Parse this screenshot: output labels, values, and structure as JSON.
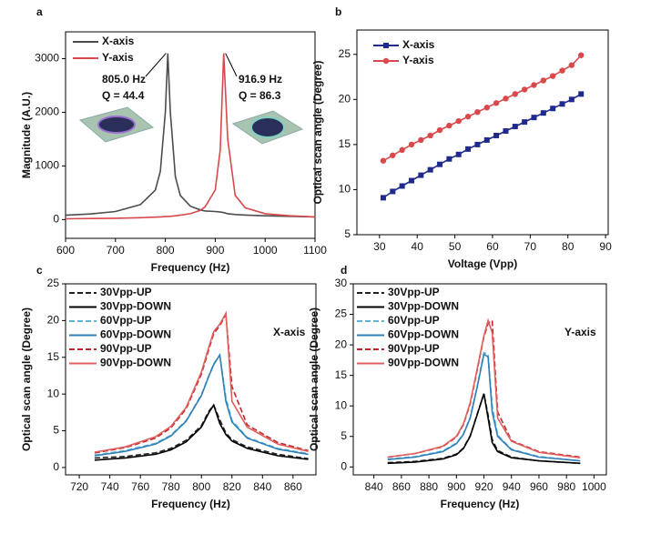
{
  "chart_data": [
    {
      "type": "line",
      "label": "a",
      "x_label": "Frequency (Hz)",
      "y_label": "Magnitude (A.U.)",
      "x": [
        600,
        650,
        700,
        750,
        780,
        790,
        800,
        805,
        810,
        820,
        830,
        850,
        870,
        880,
        900,
        910,
        916.9,
        925,
        940,
        960,
        1000,
        1050,
        1100
      ],
      "series": [
        {
          "name": "X-axis",
          "color": "#4d4d4d",
          "dash": false,
          "values": [
            80,
            105,
            150,
            280,
            550,
            900,
            2000,
            3100,
            2000,
            800,
            450,
            250,
            180,
            160,
            150,
            140,
            130,
            110,
            95,
            85,
            70,
            60,
            50
          ]
        },
        {
          "name": "Y-axis",
          "color": "#d9484b",
          "dash": false,
          "values": [
            15,
            20,
            25,
            35,
            45,
            50,
            55,
            58,
            60,
            70,
            80,
            110,
            170,
            240,
            550,
            1300,
            3100,
            1500,
            450,
            220,
            110,
            70,
            50
          ]
        }
      ],
      "annotations": [
        "805.0 Hz",
        "Q = 44.4",
        "916.9 Hz",
        "Q = 86.3"
      ],
      "annotation_color": "#000000",
      "xlim": [
        600,
        1100
      ],
      "xticks": [
        600,
        700,
        800,
        900,
        1000,
        1100
      ],
      "ylim": [
        -350,
        3500
      ],
      "yticks": [
        0,
        1000,
        2000,
        3000
      ],
      "legend": "upper left"
    },
    {
      "type": "line",
      "label": "b",
      "x_label": "Voltage (Vpp)",
      "y_label": "Optical scan angle (Degree)",
      "x": [
        31,
        33.5,
        36,
        38.5,
        41,
        43.5,
        46,
        48.5,
        51,
        53.5,
        56,
        58.5,
        61,
        63.5,
        66,
        68.5,
        71,
        73.5,
        76,
        78.5,
        81,
        83.5
      ],
      "series": [
        {
          "name": "X-axis",
          "color": "#1f2a8c",
          "dash": false,
          "marker": "square",
          "values": [
            9.1,
            9.8,
            10.4,
            11.0,
            11.6,
            12.2,
            12.8,
            13.4,
            13.9,
            14.5,
            15.0,
            15.5,
            16.0,
            16.5,
            17.0,
            17.5,
            18.0,
            18.5,
            19.0,
            19.5,
            20.0,
            20.6
          ]
        },
        {
          "name": "Y-axis",
          "color": "#d9484b",
          "dash": false,
          "marker": "circle",
          "values": [
            13.2,
            13.8,
            14.4,
            15.0,
            15.5,
            16.0,
            16.6,
            17.1,
            17.6,
            18.1,
            18.6,
            19.1,
            19.6,
            20.1,
            20.6,
            21.1,
            21.6,
            22.1,
            22.6,
            23.2,
            23.8,
            24.9
          ]
        }
      ],
      "xlim": [
        24,
        90.7
      ],
      "xticks": [
        30,
        40,
        50,
        60,
        70,
        80,
        90
      ],
      "ylim": [
        5,
        27.7
      ],
      "yticks": [
        5,
        10,
        15,
        20,
        25
      ],
      "legend": "upper left"
    },
    {
      "type": "line",
      "label": "c",
      "x_label": "Frequency (Hz)",
      "y_label": "Optical scan angle (Degree)",
      "x": [
        730,
        750,
        770,
        780,
        790,
        800,
        805,
        808,
        812,
        816,
        820,
        830,
        850,
        870
      ],
      "series": [
        {
          "name": "30Vpp-UP",
          "color": "#222222",
          "dash": true,
          "values": [
            1.3,
            1.5,
            2.0,
            2.6,
            3.7,
            5.7,
            7.7,
            8.5,
            6.5,
            4.7,
            3.8,
            2.8,
            1.8,
            1.2
          ]
        },
        {
          "name": "30Vpp-DOWN",
          "color": "#000000",
          "dash": false,
          "values": [
            1.0,
            1.3,
            1.8,
            2.4,
            3.5,
            5.5,
            7.5,
            8.5,
            6.0,
            4.5,
            3.6,
            2.6,
            1.6,
            1.1
          ]
        },
        {
          "name": "60Vpp-UP",
          "color": "#5fb3d9",
          "dash": true,
          "values": [
            1.7,
            2.3,
            3.3,
            4.4,
            6.4,
            9.9,
            12.6,
            14.1,
            15.3,
            9.5,
            6.4,
            4.1,
            2.6,
            1.9
          ]
        },
        {
          "name": "60Vpp-DOWN",
          "color": "#2f7fb8",
          "dash": false,
          "values": [
            1.6,
            2.2,
            3.2,
            4.3,
            6.3,
            9.8,
            12.5,
            14.0,
            15.3,
            9.0,
            6.2,
            4.0,
            2.5,
            1.8
          ]
        },
        {
          "name": "90Vpp-UP",
          "color": "#c0262b",
          "dash": true,
          "values": [
            2.0,
            2.7,
            4.0,
            5.4,
            8.0,
            12.7,
            16.2,
            18.2,
            19.3,
            20.8,
            11.0,
            5.8,
            3.4,
            2.3
          ]
        },
        {
          "name": "90Vpp-DOWN",
          "color": "#e0605f",
          "dash": false,
          "values": [
            2.1,
            2.8,
            4.2,
            5.6,
            8.2,
            13.0,
            16.5,
            18.5,
            19.5,
            21.0,
            9.0,
            5.5,
            3.2,
            2.2
          ]
        }
      ],
      "annotations": [
        "X-axis"
      ],
      "annotation_color": "#8a7a2a",
      "xlim": [
        711,
        875
      ],
      "xticks": [
        720,
        740,
        760,
        780,
        800,
        820,
        840,
        860
      ],
      "ylim": [
        -1,
        25
      ],
      "yticks": [
        0,
        5,
        10,
        15,
        20,
        25
      ],
      "legend": "upper left"
    },
    {
      "type": "line",
      "label": "d",
      "x_label": "Frequency (Hz)",
      "y_label": "Optical scan angle (Degree)",
      "x": [
        850,
        870,
        890,
        900,
        905,
        910,
        915,
        920,
        923,
        926,
        930,
        940,
        960,
        990
      ],
      "series": [
        {
          "name": "30Vpp-UP",
          "color": "#222222",
          "dash": true,
          "values": [
            0.7,
            0.9,
            1.4,
            2.1,
            3.1,
            5.1,
            8.6,
            12.0,
            8.5,
            4.5,
            2.7,
            1.6,
            1.0,
            0.6
          ]
        },
        {
          "name": "30Vpp-DOWN",
          "color": "#000000",
          "dash": false,
          "values": [
            0.6,
            0.8,
            1.3,
            2.0,
            3.0,
            5.0,
            8.5,
            12.0,
            8.0,
            4.0,
            2.5,
            1.5,
            1.0,
            0.6
          ]
        },
        {
          "name": "60Vpp-UP",
          "color": "#5fb3d9",
          "dash": true,
          "values": [
            1.3,
            1.7,
            2.6,
            3.9,
            5.4,
            8.1,
            13.1,
            18.7,
            18.5,
            10.0,
            5.2,
            2.9,
            1.7,
            1.0
          ]
        },
        {
          "name": "60Vpp-DOWN",
          "color": "#2f7fb8",
          "dash": false,
          "values": [
            1.2,
            1.6,
            2.5,
            3.8,
            5.3,
            8.0,
            13.0,
            18.5,
            18.0,
            9.0,
            5.0,
            2.8,
            1.6,
            1.0
          ]
        },
        {
          "name": "90Vpp-UP",
          "color": "#c0262b",
          "dash": true,
          "values": [
            1.6,
            2.2,
            3.3,
            4.9,
            6.9,
            10.3,
            15.8,
            21.3,
            23.5,
            24.0,
            9.0,
            4.3,
            2.5,
            1.6
          ]
        },
        {
          "name": "90Vpp-DOWN",
          "color": "#e0605f",
          "dash": false,
          "values": [
            1.6,
            2.2,
            3.4,
            5.0,
            7.0,
            10.5,
            16.0,
            21.5,
            24.0,
            22.0,
            8.0,
            4.2,
            2.4,
            1.5
          ]
        }
      ],
      "annotations": [
        "Y-axis"
      ],
      "annotation_color": "#4a4a8a",
      "xlim": [
        825,
        1009
      ],
      "xticks": [
        840,
        860,
        880,
        900,
        920,
        940,
        960,
        980,
        1000
      ],
      "ylim": [
        -1.3,
        30
      ],
      "yticks": [
        0,
        5,
        10,
        15,
        20,
        25,
        30
      ],
      "legend": "upper left"
    }
  ]
}
